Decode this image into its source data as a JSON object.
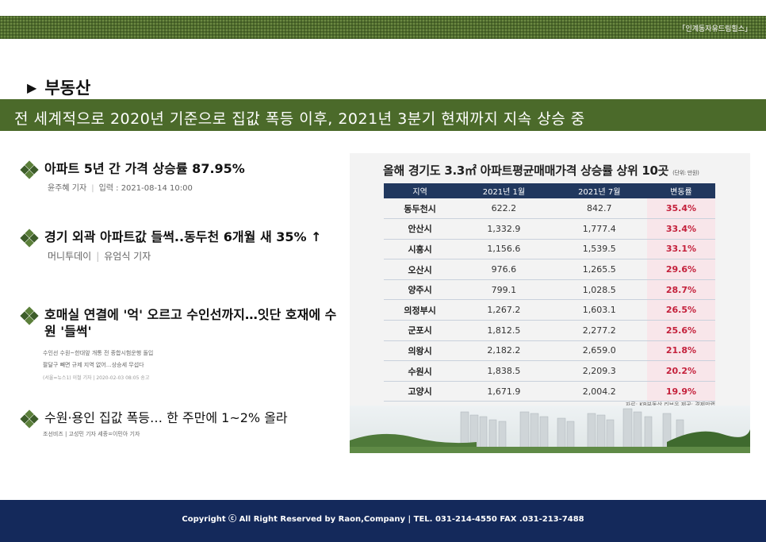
{
  "brand": "「인계동자유드림힐스」",
  "section": {
    "title": "부동산"
  },
  "headline": "전 세계적으로 2020년 기준으로 집값 폭등 이후, 2021년 3분기 현재까지 지속 상승 중",
  "news": [
    {
      "title": "아파트 5년 간 가격 상승률 87.95%",
      "reporter": "윤주혜 기자",
      "date": "입력 : 2021-08-14 10:00"
    },
    {
      "title": "경기 외곽 아파트값 들썩..동두천 6개월 새 35% ↑",
      "source": "머니투데이",
      "reporter": "유엄식 기자"
    },
    {
      "title": "호매실 연결에 '억' 오르고 수인선까지…잇단 호재에 수원 '들썩'",
      "body_line1": "수인선 수원~한대앞 개통 전 종합시험운행 돌입",
      "body_line2": "팔달구 빼면 규제 지역 없어…상승세 무섭다",
      "meta": "(서울=뉴스1) 이철 기자 | 2020-02-03 08:05 송고"
    },
    {
      "title": "수원·용인 집값 폭등… 한 주만에 1~2% 올라",
      "meta": "조선비즈 | 고성민 기자 세종=이민아 기자"
    }
  ],
  "panel": {
    "title": "올해 경기도 3.3㎡ 아파트평균매매가격 상승률 상위 10곳",
    "unit": "(단위: 만원)",
    "headers": [
      "지역",
      "2021년 1월",
      "2021년 7월",
      "변동률"
    ],
    "rows": [
      [
        "동두천시",
        "622.2",
        "842.7",
        "35.4%"
      ],
      [
        "안산시",
        "1,332.9",
        "1,777.4",
        "33.4%"
      ],
      [
        "시흥시",
        "1,156.6",
        "1,539.5",
        "33.1%"
      ],
      [
        "오산시",
        "976.6",
        "1,265.5",
        "29.6%"
      ],
      [
        "양주시",
        "799.1",
        "1,028.5",
        "28.7%"
      ],
      [
        "의정부시",
        "1,267.2",
        "1,603.1",
        "26.5%"
      ],
      [
        "군포시",
        "1,812.5",
        "2,277.2",
        "25.6%"
      ],
      [
        "의왕시",
        "2,182.2",
        "2,659.0",
        "21.8%"
      ],
      [
        "수원시",
        "1,838.5",
        "2,209.3",
        "20.2%"
      ],
      [
        "고양시",
        "1,671.9",
        "2,004.2",
        "19.9%"
      ]
    ],
    "source": "자료: KB부동산 리브온 제공: 경제만랩"
  },
  "footer": "Copyright ⓒ All Right Reserved by Raon,Company |   TEL. 031-214-4550   FAX .031-213-7488",
  "colors": {
    "green": "#4b6a2a",
    "navy": "#14295b",
    "table_header": "#21385e",
    "rate_red": "#c4203b"
  }
}
